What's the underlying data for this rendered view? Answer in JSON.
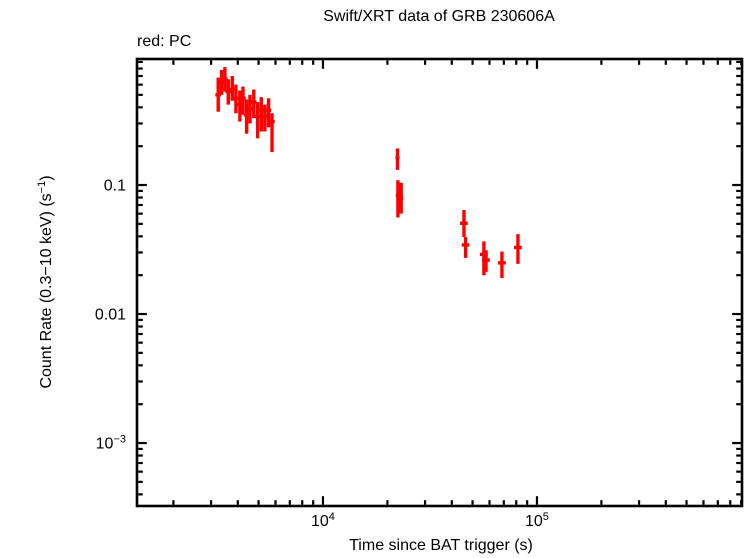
{
  "chart_data": {
    "type": "scatter",
    "title": "Swift/XRT data of GRB 230606A",
    "legend": {
      "label": "red: PC",
      "text_color": "#000000",
      "series_color": "#ff0000",
      "position": "top-left"
    },
    "xlabel": "Time since BAT trigger (s)",
    "ylabel_text": "Count Rate (0.3−10 keV) (s−1)",
    "ylabel_parts": {
      "pre": "Count Rate (0.3−10 keV) (s",
      "sup": "−1",
      "post": ")"
    },
    "x_scale": "log",
    "y_scale": "log",
    "xlim": [
      1352,
      908000
    ],
    "ylim": [
      0.000325,
      0.948
    ],
    "grid": false,
    "frame_color": "#000000",
    "x_tick_labels": [
      {
        "value": 10000,
        "base": "10",
        "sup": "4"
      },
      {
        "value": 100000,
        "base": "10",
        "sup": "5"
      }
    ],
    "y_tick_labels": [
      {
        "value": 0.1,
        "base": "0.1",
        "sup": ""
      },
      {
        "value": 0.01,
        "base": "0.01",
        "sup": ""
      },
      {
        "value": 0.001,
        "base": "10",
        "sup": "−3"
      }
    ],
    "series": [
      {
        "name": "PC",
        "color": "#ff0000",
        "marker": "error-bar-cross",
        "points": [
          {
            "t": 3240,
            "t_err": 100,
            "rate": 0.5,
            "err_up": 0.18,
            "err_dn": 0.13
          },
          {
            "t": 3360,
            "t_err": 100,
            "rate": 0.62,
            "err_up": 0.16,
            "err_dn": 0.12
          },
          {
            "t": 3480,
            "t_err": 105,
            "rate": 0.66,
            "err_up": 0.16,
            "err_dn": 0.13
          },
          {
            "t": 3610,
            "t_err": 110,
            "rate": 0.53,
            "err_up": 0.13,
            "err_dn": 0.11
          },
          {
            "t": 3770,
            "t_err": 115,
            "rate": 0.55,
            "err_up": 0.15,
            "err_dn": 0.1
          },
          {
            "t": 3920,
            "t_err": 120,
            "rate": 0.47,
            "err_up": 0.13,
            "err_dn": 0.11
          },
          {
            "t": 4090,
            "t_err": 125,
            "rate": 0.42,
            "err_up": 0.12,
            "err_dn": 0.11
          },
          {
            "t": 4230,
            "t_err": 130,
            "rate": 0.47,
            "err_up": 0.11,
            "err_dn": 0.12
          },
          {
            "t": 4400,
            "t_err": 130,
            "rate": 0.35,
            "err_up": 0.11,
            "err_dn": 0.1
          },
          {
            "t": 4560,
            "t_err": 135,
            "rate": 0.39,
            "err_up": 0.11,
            "err_dn": 0.09
          },
          {
            "t": 4750,
            "t_err": 140,
            "rate": 0.44,
            "err_up": 0.11,
            "err_dn": 0.11
          },
          {
            "t": 4950,
            "t_err": 150,
            "rate": 0.34,
            "err_up": 0.1,
            "err_dn": 0.11
          },
          {
            "t": 5150,
            "t_err": 155,
            "rate": 0.38,
            "err_up": 0.1,
            "err_dn": 0.12
          },
          {
            "t": 5350,
            "t_err": 160,
            "rate": 0.34,
            "err_up": 0.08,
            "err_dn": 0.08
          },
          {
            "t": 5570,
            "t_err": 165,
            "rate": 0.38,
            "err_up": 0.09,
            "err_dn": 0.1
          },
          {
            "t": 5780,
            "t_err": 175,
            "rate": 0.31,
            "err_up": 0.05,
            "err_dn": 0.13
          },
          {
            "t": 22300,
            "t_err": 500,
            "rate": 0.163,
            "err_up": 0.029,
            "err_dn": 0.032
          },
          {
            "t": 22400,
            "t_err": 500,
            "rate": 0.083,
            "err_up": 0.026,
            "err_dn": 0.027
          },
          {
            "t": 23200,
            "t_err": 500,
            "rate": 0.079,
            "err_up": 0.025,
            "err_dn": 0.019
          },
          {
            "t": 45600,
            "t_err": 1900,
            "rate": 0.0505,
            "err_up": 0.0135,
            "err_dn": 0.011
          },
          {
            "t": 46400,
            "t_err": 1900,
            "rate": 0.0343,
            "err_up": 0.0052,
            "err_dn": 0.0071
          },
          {
            "t": 56500,
            "t_err": 2400,
            "rate": 0.029,
            "err_up": 0.0076,
            "err_dn": 0.009
          },
          {
            "t": 57800,
            "t_err": 2400,
            "rate": 0.0262,
            "err_up": 0.005,
            "err_dn": 0.005
          },
          {
            "t": 68600,
            "t_err": 2900,
            "rate": 0.0249,
            "err_up": 0.0056,
            "err_dn": 0.0059
          },
          {
            "t": 81500,
            "t_err": 3400,
            "rate": 0.0328,
            "err_up": 0.0088,
            "err_dn": 0.0083
          }
        ]
      }
    ]
  }
}
